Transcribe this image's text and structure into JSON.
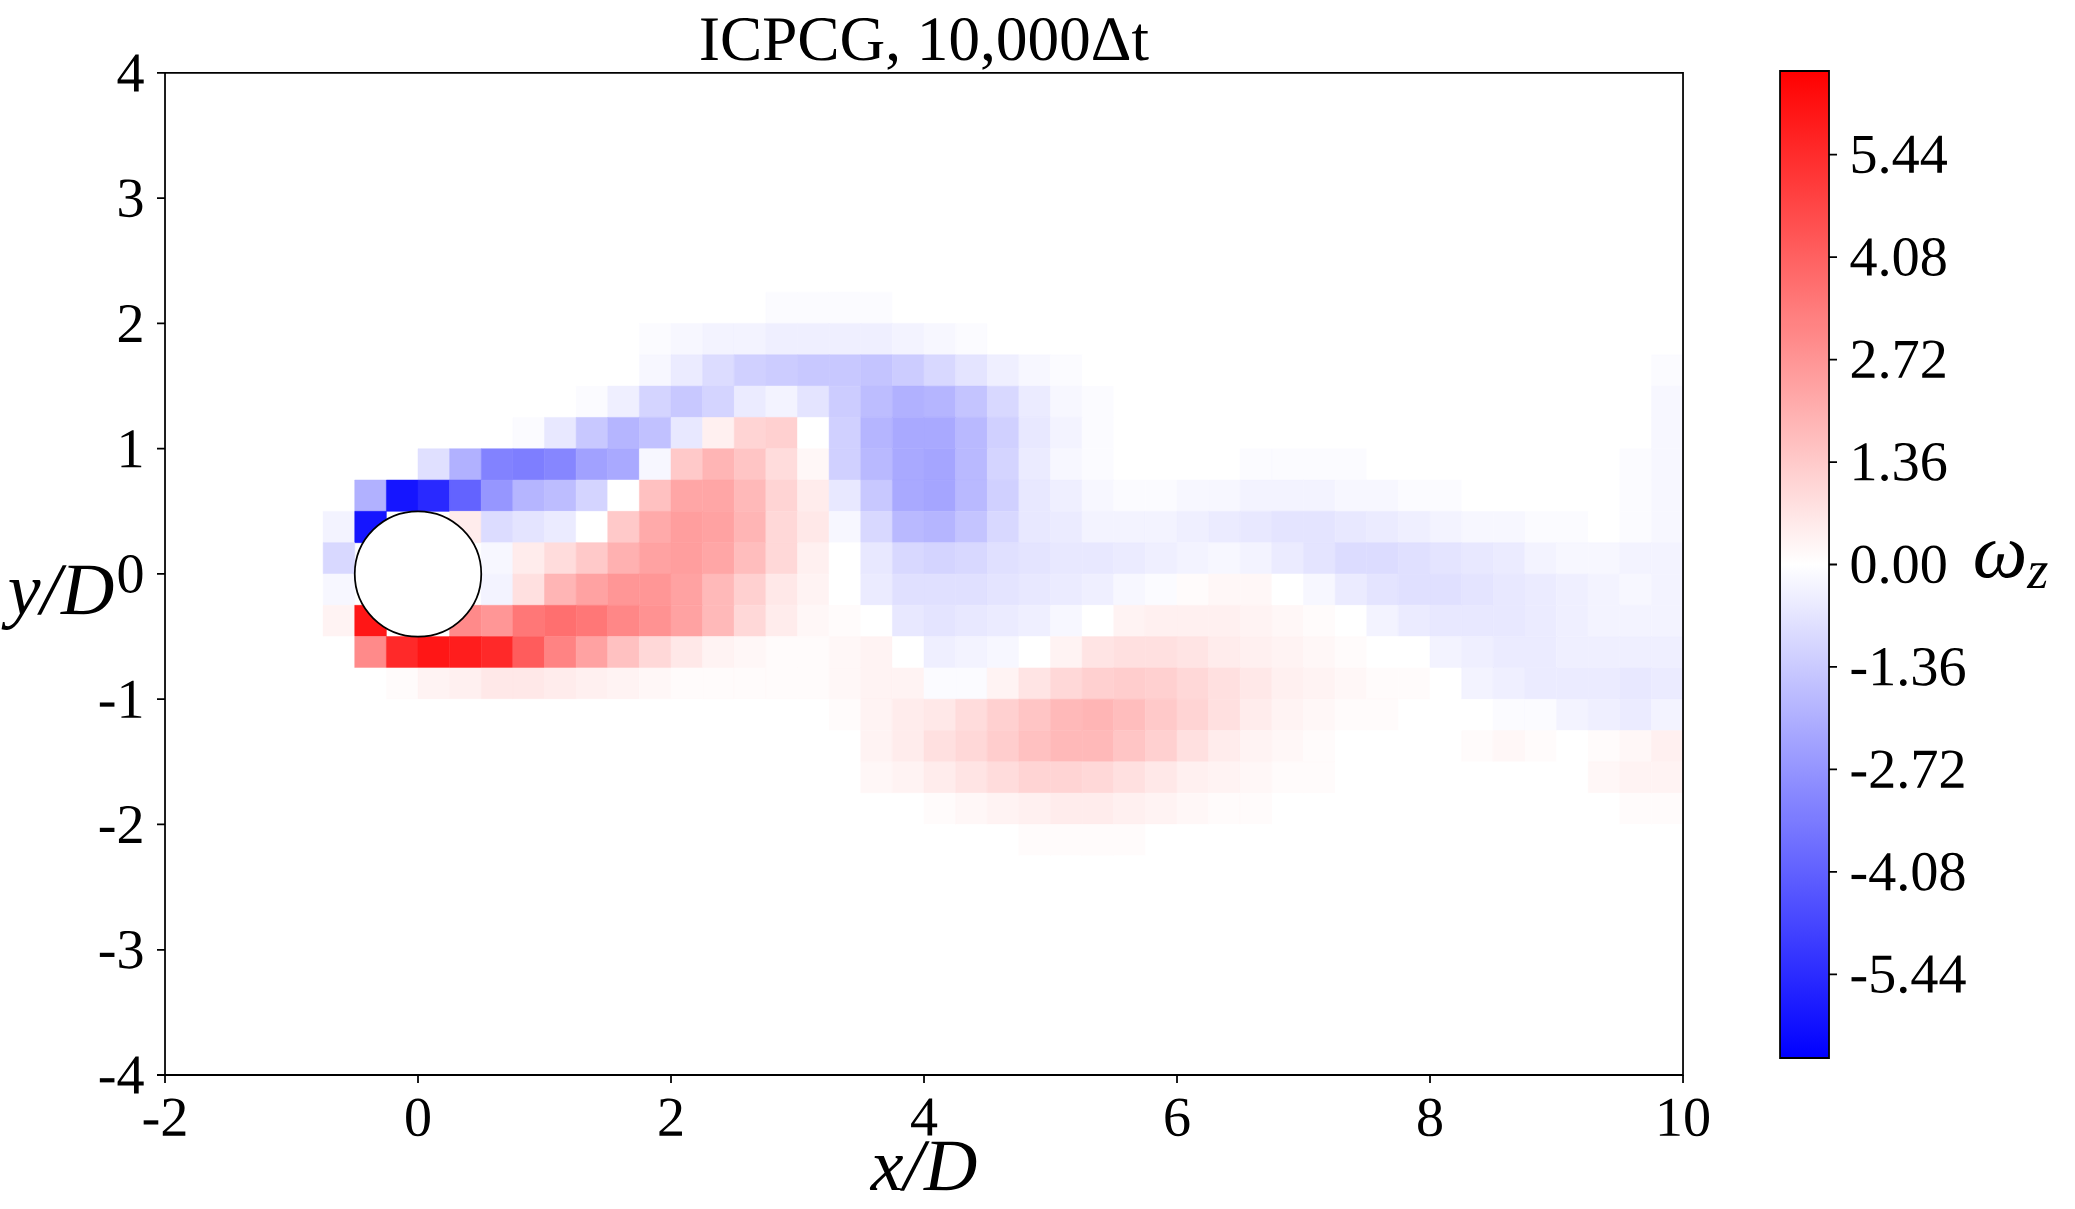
{
  "chart_data": {
    "type": "heatmap",
    "title": "ICPCG, 10,000Δt",
    "xlabel": "x/D",
    "ylabel": "y/D",
    "clabel": "ω$_{z}$",
    "xlim": [
      -2,
      10
    ],
    "ylim": [
      -4,
      4
    ],
    "xticks": [
      -2,
      0,
      2,
      4,
      6,
      8,
      10
    ],
    "yticks": [
      -4,
      -3,
      -2,
      -1,
      0,
      1,
      2,
      3,
      4
    ],
    "clim": [
      -6.55,
      6.55
    ],
    "cticks": [
      -5.44,
      -4.08,
      -2.72,
      -1.36,
      {
        "value": 0,
        "label": "0.00"
      },
      1.36,
      2.72,
      4.08,
      5.44
    ],
    "cells": [
      [
        0,
        0,
        0,
        0,
        0,
        0,
        0,
        0,
        0,
        0,
        0,
        0,
        0,
        0,
        0,
        0,
        0,
        0,
        0,
        0,
        0,
        0,
        0,
        0,
        0,
        0,
        0,
        0,
        0,
        0,
        0,
        0,
        0,
        0,
        0,
        0,
        0,
        0,
        0,
        0,
        0,
        0,
        0,
        0,
        0,
        0,
        0,
        0
      ],
      [
        0,
        0,
        0,
        0,
        0,
        0,
        0,
        0,
        0,
        0,
        0,
        0,
        0,
        0,
        0,
        0,
        0,
        0,
        0,
        0,
        0,
        0,
        0,
        0,
        0,
        0,
        0,
        0,
        0,
        0,
        0,
        0,
        0,
        0,
        0,
        0,
        0,
        0,
        0,
        0,
        0,
        0,
        0,
        0,
        0,
        0,
        0,
        0
      ],
      [
        0,
        0,
        0,
        0,
        0,
        0,
        0,
        0,
        0,
        0,
        0,
        0,
        0,
        0,
        0,
        0,
        0,
        0,
        0,
        0,
        0,
        0,
        0,
        0,
        0,
        0,
        0,
        0,
        0,
        0,
        0,
        0,
        0,
        0,
        0,
        0,
        0,
        0,
        0,
        0,
        0,
        0,
        0,
        0,
        0,
        0,
        0,
        0
      ],
      [
        0,
        0,
        0,
        0,
        0,
        0,
        0,
        0,
        0,
        0,
        0,
        0,
        0,
        0,
        0,
        0,
        0,
        0,
        0,
        0,
        0,
        0,
        0,
        0,
        0,
        0,
        0,
        0,
        0,
        0,
        0,
        0,
        0,
        0,
        0,
        0,
        0,
        0,
        0,
        0,
        0,
        0,
        0,
        0,
        0,
        0,
        0,
        0
      ],
      [
        0,
        0,
        0,
        0,
        0,
        0,
        0,
        0,
        0,
        0,
        0,
        0,
        0,
        0,
        0,
        0,
        0,
        0,
        0,
        0,
        0,
        0,
        0,
        0,
        0,
        0,
        0,
        0,
        0,
        0,
        0,
        0,
        0,
        0,
        0,
        0,
        0,
        0,
        0,
        0,
        0,
        0,
        0,
        0,
        0,
        0,
        0,
        0
      ],
      [
        0,
        0,
        0,
        0,
        0,
        0,
        0,
        0,
        0,
        0,
        0,
        0,
        0,
        0,
        0,
        0,
        0,
        0,
        0,
        0,
        0,
        0,
        0,
        0,
        0,
        0,
        0,
        0,
        0,
        0,
        0,
        0,
        0,
        0,
        0,
        0,
        0,
        0,
        0,
        0,
        0,
        0,
        0,
        0,
        0,
        0,
        0,
        0
      ],
      [
        0,
        0,
        0,
        0,
        0,
        0,
        0,
        0,
        0,
        0,
        0,
        0,
        0,
        0,
        0,
        0,
        0,
        0,
        0,
        0,
        0,
        0,
        0,
        0,
        0,
        0,
        0,
        0,
        0,
        0,
        0,
        0,
        0,
        0,
        0,
        0,
        0,
        0,
        0,
        0,
        0,
        0,
        0,
        0,
        0,
        0,
        0,
        0
      ],
      [
        0,
        0,
        0,
        0,
        0,
        0,
        0,
        0,
        0,
        0,
        0,
        0,
        0,
        0,
        0,
        0,
        0,
        0,
        0,
        -0.1,
        -0.1,
        -0.1,
        -0.1,
        0,
        0,
        0,
        0,
        0,
        0,
        0,
        0,
        0,
        0,
        0,
        0,
        0,
        0,
        0,
        0,
        0,
        0,
        0,
        0,
        0,
        0,
        0,
        0,
        0
      ],
      [
        0,
        0,
        0,
        0,
        0,
        0,
        0,
        0,
        0,
        0,
        0,
        0,
        0,
        0,
        0,
        -0.1,
        -0.2,
        -0.3,
        -0.3,
        -0.4,
        -0.4,
        -0.4,
        -0.4,
        -0.3,
        -0.2,
        -0.1,
        0,
        0,
        0,
        0,
        0,
        0,
        0,
        0,
        0,
        0,
        0,
        0,
        0,
        0,
        0,
        0,
        0,
        0,
        0,
        0,
        0,
        0
      ],
      [
        0,
        0,
        0,
        0,
        0,
        0,
        0,
        0,
        0,
        0,
        0,
        0,
        0,
        0,
        0,
        -0.2,
        -0.5,
        -0.9,
        -1.2,
        -1.3,
        -1.4,
        -1.4,
        -1.5,
        -1.3,
        -1.0,
        -0.7,
        -0.4,
        -0.2,
        -0.1,
        0,
        0,
        0,
        0,
        0,
        0,
        0,
        0,
        0,
        0,
        0,
        0,
        0,
        0,
        0,
        0,
        0,
        0,
        -0.1
      ],
      [
        0,
        0,
        0,
        0,
        0,
        0,
        0,
        0,
        0,
        0,
        0,
        0,
        0,
        -0.1,
        -0.4,
        -1.1,
        -1.4,
        -1.1,
        -0.5,
        -0.3,
        -0.7,
        -1.3,
        -1.7,
        -2.0,
        -1.9,
        -1.5,
        -1.0,
        -0.5,
        -0.2,
        -0.1,
        0,
        0,
        0,
        0,
        0,
        0,
        0,
        0,
        0,
        0,
        0,
        0,
        0,
        0,
        0,
        0,
        0,
        -0.2
      ],
      [
        0,
        0,
        0,
        0,
        0,
        0,
        0,
        0,
        0,
        0,
        0,
        -0.1,
        -0.6,
        -1.4,
        -1.9,
        -1.6,
        -0.6,
        0.4,
        1.1,
        1.2,
        0,
        -1.2,
        -1.9,
        -2.2,
        -2.2,
        -1.8,
        -1.2,
        -0.6,
        -0.3,
        -0.1,
        0,
        0,
        0,
        0,
        0,
        0,
        0,
        0,
        0,
        0,
        0,
        0,
        0,
        0,
        0,
        0,
        0,
        -0.2
      ],
      [
        0,
        0,
        0,
        0,
        0,
        0,
        0,
        0,
        -0.8,
        -2.0,
        -3.2,
        -3.3,
        -3.1,
        -2.4,
        -2.2,
        -0.2,
        1.4,
        1.9,
        1.5,
        0.9,
        0.2,
        -1.2,
        -1.8,
        -2.2,
        -2.3,
        -1.8,
        -1.1,
        -0.5,
        -0.2,
        -0.1,
        0,
        0,
        0,
        0,
        -0.1,
        -0.1,
        -0.1,
        -0.1,
        0,
        0,
        0,
        0,
        0,
        0,
        0,
        0,
        -0.1,
        -0.2
      ],
      [
        0,
        0,
        0,
        0,
        0,
        0,
        -2.0,
        -6.0,
        -5.5,
        -4.0,
        -2.7,
        -1.9,
        -1.7,
        -1.1,
        0,
        1.6,
        2.3,
        2.3,
        1.8,
        1.1,
        0.5,
        -0.6,
        -1.4,
        -2.2,
        -2.3,
        -1.8,
        -1.2,
        -0.6,
        -0.4,
        -0.2,
        -0.1,
        -0.1,
        -0.2,
        -0.2,
        -0.3,
        -0.3,
        -0.3,
        -0.2,
        -0.2,
        -0.1,
        -0.1,
        0,
        0,
        0,
        0,
        0,
        -0.1,
        -0.2
      ],
      [
        0,
        0,
        0,
        0,
        0,
        -0.3,
        -6.0,
        null,
        null,
        0.5,
        -0.9,
        -0.7,
        -0.5,
        0,
        1.4,
        2.2,
        2.5,
        2.4,
        1.9,
        1.0,
        0.6,
        -0.2,
        -1.0,
        -1.8,
        -1.9,
        -1.5,
        -1.0,
        -0.6,
        -0.5,
        -0.3,
        -0.3,
        -0.3,
        -0.4,
        -0.5,
        -0.6,
        -0.7,
        -0.7,
        -0.6,
        -0.5,
        -0.4,
        -0.3,
        -0.2,
        -0.2,
        -0.1,
        -0.1,
        0,
        -0.1,
        -0.2
      ],
      [
        0,
        0,
        0,
        0,
        0,
        -1.0,
        null,
        null,
        null,
        null,
        -0.2,
        0.5,
        0.9,
        1.4,
        2.0,
        2.4,
        2.5,
        2.3,
        1.7,
        1.0,
        0.4,
        0,
        -0.6,
        -1.0,
        -1.1,
        -1.0,
        -0.8,
        -0.7,
        -0.6,
        -0.6,
        -0.5,
        -0.4,
        -0.3,
        -0.2,
        -0.3,
        -0.5,
        -0.7,
        -0.9,
        -0.9,
        -0.8,
        -0.7,
        -0.6,
        -0.5,
        -0.3,
        -0.2,
        -0.2,
        -0.3,
        -0.3
      ],
      [
        0,
        0,
        0,
        0,
        0,
        -0.2,
        null,
        null,
        null,
        null,
        -0.3,
        0.8,
        1.9,
        2.4,
        2.7,
        2.7,
        2.4,
        1.8,
        1.2,
        0.6,
        0.3,
        0,
        -0.5,
        -0.8,
        -0.8,
        -0.8,
        -0.7,
        -0.6,
        -0.5,
        -0.4,
        -0.2,
        -0.1,
        0.1,
        0.2,
        0.2,
        0,
        -0.2,
        -0.5,
        -0.7,
        -0.8,
        -0.8,
        -0.7,
        -0.6,
        -0.5,
        -0.4,
        -0.3,
        -0.2,
        -0.3
      ],
      [
        0,
        0,
        0,
        0,
        0,
        0.3,
        6.0,
        null,
        null,
        3.0,
        2.7,
        3.5,
        3.7,
        3.5,
        3.1,
        2.8,
        2.4,
        1.8,
        1.0,
        0.5,
        0.2,
        0.1,
        0,
        -0.6,
        -0.7,
        -0.6,
        -0.5,
        -0.4,
        -0.2,
        0,
        0.3,
        0.4,
        0.4,
        0.4,
        0.3,
        0.2,
        0.1,
        0,
        -0.3,
        -0.5,
        -0.6,
        -0.6,
        -0.6,
        -0.5,
        -0.4,
        -0.3,
        -0.3,
        -0.3
      ],
      [
        0,
        0,
        0,
        0,
        0,
        0,
        3.0,
        5.5,
        6.0,
        5.8,
        5.5,
        4.2,
        3.2,
        2.4,
        1.6,
        1.0,
        0.6,
        0.3,
        0.2,
        0.1,
        0.1,
        0.2,
        0.3,
        0,
        -0.4,
        -0.3,
        -0.2,
        0,
        0.3,
        0.7,
        0.8,
        0.8,
        0.7,
        0.5,
        0.4,
        0.3,
        0.2,
        0.1,
        0,
        0,
        -0.3,
        -0.4,
        -0.5,
        -0.5,
        -0.4,
        -0.4,
        -0.4,
        -0.4
      ],
      [
        0,
        0,
        0,
        0,
        0,
        0,
        0,
        0.1,
        0.3,
        0.4,
        0.6,
        0.6,
        0.5,
        0.4,
        0.3,
        0.2,
        0.1,
        0.1,
        0.1,
        0.1,
        0.1,
        0.2,
        0.3,
        0.3,
        -0.1,
        -0.1,
        0.3,
        0.7,
        1.0,
        1.2,
        1.3,
        1.2,
        1.0,
        0.8,
        0.6,
        0.4,
        0.3,
        0.2,
        0.1,
        0.1,
        0,
        -0.3,
        -0.4,
        -0.5,
        -0.5,
        -0.5,
        -0.6,
        -0.5
      ],
      [
        0,
        0,
        0,
        0,
        0,
        0,
        0,
        0,
        0,
        0,
        0,
        0,
        0,
        0,
        0,
        0,
        0,
        0,
        0,
        0,
        0,
        0.1,
        0.3,
        0.5,
        0.6,
        0.9,
        1.2,
        1.5,
        1.8,
        1.9,
        1.7,
        1.4,
        1.1,
        0.8,
        0.5,
        0.3,
        0.2,
        0.1,
        0.1,
        0,
        0,
        0,
        -0.1,
        -0.1,
        -0.3,
        -0.4,
        -0.5,
        -0.3
      ],
      [
        0,
        0,
        0,
        0,
        0,
        0,
        0,
        0,
        0,
        0,
        0,
        0,
        0,
        0,
        0,
        0,
        0,
        0,
        0,
        0,
        0,
        0,
        0.3,
        0.5,
        0.8,
        1.0,
        1.3,
        1.6,
        1.8,
        1.8,
        1.5,
        1.2,
        0.8,
        0.5,
        0.3,
        0.2,
        0.1,
        0,
        0,
        0,
        0,
        0.1,
        0.2,
        0.1,
        0,
        0.1,
        0.2,
        0.4
      ],
      [
        0,
        0,
        0,
        0,
        0,
        0,
        0,
        0,
        0,
        0,
        0,
        0,
        0,
        0,
        0,
        0,
        0,
        0,
        0,
        0,
        0,
        0,
        0.2,
        0.3,
        0.5,
        0.7,
        0.9,
        1.1,
        1.1,
        1.0,
        0.8,
        0.6,
        0.4,
        0.3,
        0.2,
        0.1,
        0.1,
        0,
        0,
        0,
        0,
        0,
        0,
        0,
        0,
        0.2,
        0.3,
        0.3
      ],
      [
        0,
        0,
        0,
        0,
        0,
        0,
        0,
        0,
        0,
        0,
        0,
        0,
        0,
        0,
        0,
        0,
        0,
        0,
        0,
        0,
        0,
        0,
        0,
        0,
        0.1,
        0.2,
        0.3,
        0.4,
        0.5,
        0.5,
        0.4,
        0.3,
        0.2,
        0.1,
        0.1,
        0,
        0,
        0,
        0,
        0,
        0,
        0,
        0,
        0,
        0,
        0,
        0.1,
        0.1
      ],
      [
        0,
        0,
        0,
        0,
        0,
        0,
        0,
        0,
        0,
        0,
        0,
        0,
        0,
        0,
        0,
        0,
        0,
        0,
        0,
        0,
        0,
        0,
        0,
        0,
        0,
        0,
        0,
        0.1,
        0.1,
        0.1,
        0.1,
        0,
        0,
        0,
        0,
        0,
        0,
        0,
        0,
        0,
        0,
        0,
        0,
        0,
        0,
        0,
        0,
        0
      ],
      [
        0,
        0,
        0,
        0,
        0,
        0,
        0,
        0,
        0,
        0,
        0,
        0,
        0,
        0,
        0,
        0,
        0,
        0,
        0,
        0,
        0,
        0,
        0,
        0,
        0,
        0,
        0,
        0,
        0,
        0,
        0,
        0,
        0,
        0,
        0,
        0,
        0,
        0,
        0,
        0,
        0,
        0,
        0,
        0,
        0,
        0,
        0,
        0
      ],
      [
        0,
        0,
        0,
        0,
        0,
        0,
        0,
        0,
        0,
        0,
        0,
        0,
        0,
        0,
        0,
        0,
        0,
        0,
        0,
        0,
        0,
        0,
        0,
        0,
        0,
        0,
        0,
        0,
        0,
        0,
        0,
        0,
        0,
        0,
        0,
        0,
        0,
        0,
        0,
        0,
        0,
        0,
        0,
        0,
        0,
        0,
        0,
        0
      ],
      [
        0,
        0,
        0,
        0,
        0,
        0,
        0,
        0,
        0,
        0,
        0,
        0,
        0,
        0,
        0,
        0,
        0,
        0,
        0,
        0,
        0,
        0,
        0,
        0,
        0,
        0,
        0,
        0,
        0,
        0,
        0,
        0,
        0,
        0,
        0,
        0,
        0,
        0,
        0,
        0,
        0,
        0,
        0,
        0,
        0,
        0,
        0,
        0
      ],
      [
        0,
        0,
        0,
        0,
        0,
        0,
        0,
        0,
        0,
        0,
        0,
        0,
        0,
        0,
        0,
        0,
        0,
        0,
        0,
        0,
        0,
        0,
        0,
        0,
        0,
        0,
        0,
        0,
        0,
        0,
        0,
        0,
        0,
        0,
        0,
        0,
        0,
        0,
        0,
        0,
        0,
        0,
        0,
        0,
        0,
        0,
        0,
        0
      ],
      [
        0,
        0,
        0,
        0,
        0,
        0,
        0,
        0,
        0,
        0,
        0,
        0,
        0,
        0,
        0,
        0,
        0,
        0,
        0,
        0,
        0,
        0,
        0,
        0,
        0,
        0,
        0,
        0,
        0,
        0,
        0,
        0,
        0,
        0,
        0,
        0,
        0,
        0,
        0,
        0,
        0,
        0,
        0,
        0,
        0,
        0,
        0,
        0
      ],
      [
        0,
        0,
        0,
        0,
        0,
        0,
        0,
        0,
        0,
        0,
        0,
        0,
        0,
        0,
        0,
        0,
        0,
        0,
        0,
        0,
        0,
        0,
        0,
        0,
        0,
        0,
        0,
        0,
        0,
        0,
        0,
        0,
        0,
        0,
        0,
        0,
        0,
        0,
        0,
        0,
        0,
        0,
        0,
        0,
        0,
        0,
        0,
        0
      ],
      [
        0,
        0,
        0,
        0,
        0,
        0,
        0,
        0,
        0,
        0,
        0,
        0,
        0,
        0,
        0,
        0,
        0,
        0,
        0,
        0,
        0,
        0,
        0,
        0,
        0,
        0,
        0,
        0,
        0,
        0,
        0,
        0,
        0,
        0,
        0,
        0,
        0,
        0,
        0,
        0,
        0,
        0,
        0,
        0,
        0,
        0,
        0,
        0
      ]
    ]
  }
}
